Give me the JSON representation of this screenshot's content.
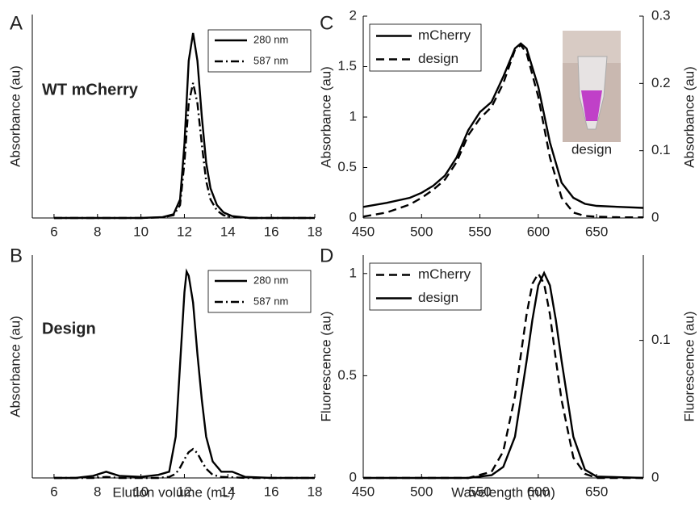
{
  "chart_data": [
    {
      "type": "line",
      "label": "A",
      "annotation": "WT mCherry",
      "ylabel": "Absorbance (au)",
      "xlim": [
        5,
        18
      ],
      "xticks": [
        6,
        8,
        10,
        12,
        14,
        16,
        18
      ],
      "ylim": [
        0,
        1.1
      ],
      "legend": "upper right",
      "x": [
        6,
        8,
        10,
        11,
        11.5,
        11.8,
        12,
        12.2,
        12.4,
        12.6,
        12.8,
        13,
        13.2,
        13.5,
        13.8,
        14.2,
        15,
        16,
        18
      ],
      "series": [
        {
          "name": "280 nm",
          "color": "#000000",
          "dash": "solid",
          "values": [
            0,
            0,
            0,
            0.005,
            0.02,
            0.1,
            0.4,
            0.85,
            1.0,
            0.85,
            0.55,
            0.3,
            0.16,
            0.07,
            0.03,
            0.01,
            0,
            0,
            0
          ]
        },
        {
          "name": "587 nm",
          "color": "#000000",
          "dash": "dashdot",
          "values": [
            0,
            0,
            0,
            0.003,
            0.015,
            0.07,
            0.3,
            0.62,
            0.73,
            0.62,
            0.4,
            0.2,
            0.1,
            0.04,
            0.015,
            0.005,
            0,
            0,
            0
          ]
        }
      ]
    },
    {
      "type": "line",
      "label": "B",
      "annotation": "Design",
      "ylabel": "Absorbance (au)",
      "xlabel": "Elution volume (mL)",
      "xlim": [
        5,
        18
      ],
      "xticks": [
        6,
        8,
        10,
        12,
        14,
        16,
        18
      ],
      "ylim": [
        0,
        1.08
      ],
      "legend": "upper right",
      "x": [
        6,
        7,
        7.8,
        8.4,
        9,
        10,
        10.8,
        11.3,
        11.6,
        11.8,
        12,
        12.1,
        12.2,
        12.4,
        12.6,
        12.8,
        13,
        13.3,
        13.7,
        14.2,
        14.8,
        16,
        18
      ],
      "series": [
        {
          "name": "280 nm",
          "color": "#000000",
          "dash": "solid",
          "values": [
            0,
            0,
            0.01,
            0.03,
            0.01,
            0.005,
            0.015,
            0.03,
            0.2,
            0.55,
            0.9,
            1.0,
            0.98,
            0.85,
            0.6,
            0.38,
            0.2,
            0.08,
            0.03,
            0.03,
            0.005,
            0,
            0
          ]
        },
        {
          "name": "587 nm",
          "color": "#000000",
          "dash": "dashdot",
          "values": [
            0,
            0,
            0,
            0.005,
            0,
            0,
            0,
            0.005,
            0.02,
            0.05,
            0.09,
            0.11,
            0.125,
            0.14,
            0.12,
            0.08,
            0.045,
            0.015,
            0.005,
            0.003,
            0,
            0,
            0
          ]
        }
      ]
    },
    {
      "type": "line",
      "label": "C",
      "annotation": "design",
      "ylabel": "Absorbance (au)",
      "y2label": "Absorbance (au)",
      "xlim": [
        450,
        690
      ],
      "xticks": [
        450,
        500,
        550,
        600,
        650
      ],
      "ylim": [
        0,
        2
      ],
      "yticks": [
        0,
        0.5,
        1,
        1.5,
        2
      ],
      "y2lim": [
        0,
        0.3
      ],
      "y2ticks": [
        0,
        0.1,
        0.2,
        0.3
      ],
      "legend": "upper left",
      "x": [
        450,
        470,
        490,
        500,
        510,
        520,
        530,
        540,
        550,
        560,
        570,
        580,
        585,
        590,
        600,
        610,
        620,
        630,
        640,
        650,
        670,
        690
      ],
      "series": [
        {
          "name": "mCherry",
          "color": "#000000",
          "dash": "solid",
          "values": [
            0.11,
            0.15,
            0.2,
            0.25,
            0.32,
            0.42,
            0.6,
            0.87,
            1.05,
            1.15,
            1.4,
            1.68,
            1.73,
            1.68,
            1.3,
            0.75,
            0.35,
            0.2,
            0.14,
            0.12,
            0.11,
            0.1
          ]
        },
        {
          "name": "design",
          "color": "#000000",
          "dash": "dashed",
          "axis": "y2",
          "values": [
            0.002,
            0.008,
            0.02,
            0.03,
            0.042,
            0.057,
            0.083,
            0.123,
            0.148,
            0.165,
            0.2,
            0.25,
            0.257,
            0.245,
            0.18,
            0.09,
            0.03,
            0.008,
            0.003,
            0.002,
            0.001,
            0.001
          ]
        }
      ]
    },
    {
      "type": "line",
      "label": "D",
      "ylabel": "Fluorescence (au)",
      "y2label": "Fluorescence (au)",
      "xlabel": "Wavelength (nm)",
      "xlim": [
        450,
        690
      ],
      "xticks": [
        450,
        500,
        550,
        600,
        650
      ],
      "ylim": [
        0,
        1.09
      ],
      "yticks": [
        0,
        0.5,
        1
      ],
      "y2lim": [
        0,
        0.162
      ],
      "y2ticks": [
        0,
        0.1
      ],
      "legend": "upper left",
      "x": [
        450,
        540,
        560,
        570,
        580,
        590,
        595,
        600,
        605,
        610,
        615,
        620,
        630,
        640,
        650,
        690
      ],
      "series": [
        {
          "name": "mCherry",
          "color": "#000000",
          "dash": "dashed",
          "values": [
            0,
            0,
            0.03,
            0.13,
            0.4,
            0.8,
            0.95,
            1.0,
            0.95,
            0.8,
            0.58,
            0.38,
            0.1,
            0.02,
            0,
            0
          ]
        },
        {
          "name": "design",
          "color": "#000000",
          "dash": "solid",
          "axis": "y2",
          "values": [
            0,
            0,
            0.002,
            0.008,
            0.03,
            0.085,
            0.115,
            0.14,
            0.149,
            0.14,
            0.115,
            0.085,
            0.03,
            0.006,
            0.001,
            0
          ]
        }
      ]
    }
  ]
}
